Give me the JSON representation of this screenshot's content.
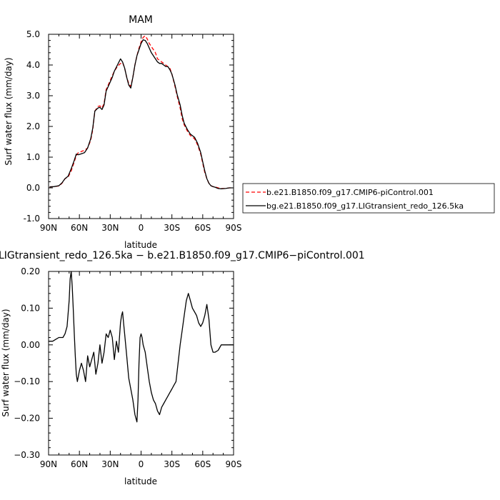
{
  "chart_data": [
    {
      "type": "line",
      "title": "MAM",
      "xlabel": "latitude",
      "ylabel": "Surf water flux (mm/day)",
      "x_tick_labels": [
        "90N",
        "60N",
        "30N",
        "0",
        "30S",
        "60S",
        "90S"
      ],
      "x_tick_values": [
        90,
        60,
        30,
        0,
        -30,
        -60,
        -90
      ],
      "xlim": [
        90,
        -90
      ],
      "y_tick_labels": [
        "-1.0",
        "0.0",
        "1.0",
        "2.0",
        "3.0",
        "4.0",
        "5.0"
      ],
      "y_tick_values": [
        -1,
        0,
        1,
        2,
        3,
        4,
        5
      ],
      "ylim": [
        -1,
        5
      ],
      "legend": "right, outside plot",
      "series": [
        {
          "name": "b.e21.B1850.f09_g17.CMIP6-piControl.001",
          "color": "#ff0000",
          "style": "dashed",
          "x": [
            89,
            85,
            80,
            77,
            74,
            71,
            68,
            65,
            63,
            61,
            59,
            57,
            55,
            52,
            49,
            47,
            45,
            42,
            40,
            38,
            36,
            34,
            32,
            30,
            28,
            26,
            23,
            20,
            18,
            16,
            14,
            12,
            10,
            8,
            6,
            4,
            2,
            0,
            -2,
            -4,
            -6,
            -8,
            -10,
            -12,
            -14,
            -16,
            -18,
            -20,
            -22,
            -24,
            -26,
            -28,
            -30,
            -33,
            -35,
            -38,
            -40,
            -42,
            -45,
            -48,
            -52,
            -55,
            -58,
            -60,
            -62,
            -64,
            -66,
            -68,
            -70,
            -72,
            -75,
            -78,
            -82,
            -86,
            -89
          ],
          "y": [
            0.03,
            0.04,
            0.06,
            0.15,
            0.3,
            0.35,
            0.55,
            0.85,
            1.05,
            1.15,
            1.17,
            1.2,
            1.22,
            1.3,
            1.55,
            1.9,
            2.5,
            2.65,
            2.67,
            2.6,
            2.75,
            3.2,
            3.35,
            3.5,
            3.65,
            3.8,
            3.95,
            4.05,
            4.08,
            3.9,
            3.6,
            3.4,
            3.3,
            3.6,
            4.0,
            4.3,
            4.55,
            4.75,
            4.9,
            4.95,
            4.85,
            4.7,
            4.6,
            4.5,
            4.4,
            4.2,
            4.15,
            4.1,
            4.05,
            4.0,
            3.95,
            3.9,
            3.7,
            3.3,
            3.0,
            2.6,
            2.25,
            2.05,
            1.85,
            1.7,
            1.6,
            1.4,
            1.1,
            0.8,
            0.5,
            0.3,
            0.15,
            0.07,
            0.04,
            0.03,
            0.0,
            -0.02,
            -0.02,
            0.0,
            0.0
          ]
        },
        {
          "name": "bg.e21.B1850.f09_g17.LIGtransient_redo_126.5ka",
          "color": "#000000",
          "style": "solid",
          "x": [
            89,
            85,
            80,
            77,
            74,
            71,
            68,
            65,
            63,
            61,
            59,
            57,
            55,
            52,
            49,
            47,
            45,
            42,
            40,
            38,
            36,
            34,
            32,
            30,
            28,
            26,
            23,
            20,
            18,
            16,
            14,
            12,
            10,
            8,
            6,
            4,
            2,
            0,
            -2,
            -4,
            -6,
            -8,
            -10,
            -12,
            -14,
            -16,
            -18,
            -20,
            -22,
            -24,
            -26,
            -28,
            -30,
            -33,
            -35,
            -38,
            -40,
            -42,
            -45,
            -48,
            -52,
            -55,
            -58,
            -60,
            -62,
            -64,
            -66,
            -68,
            -70,
            -72,
            -75,
            -78,
            -82,
            -86,
            -89
          ],
          "y": [
            0.03,
            0.04,
            0.07,
            0.16,
            0.3,
            0.38,
            0.62,
            0.9,
            1.1,
            1.08,
            1.1,
            1.12,
            1.15,
            1.3,
            1.6,
            1.95,
            2.5,
            2.6,
            2.62,
            2.55,
            2.7,
            3.15,
            3.3,
            3.45,
            3.6,
            3.8,
            4.0,
            4.2,
            4.1,
            3.9,
            3.6,
            3.35,
            3.25,
            3.6,
            4.0,
            4.3,
            4.5,
            4.7,
            4.82,
            4.8,
            4.7,
            4.55,
            4.4,
            4.3,
            4.2,
            4.1,
            4.05,
            4.05,
            4.0,
            3.95,
            3.95,
            3.85,
            3.7,
            3.35,
            3.05,
            2.7,
            2.35,
            2.1,
            1.9,
            1.75,
            1.65,
            1.45,
            1.15,
            0.85,
            0.55,
            0.3,
            0.15,
            0.07,
            0.04,
            0.02,
            -0.02,
            -0.03,
            -0.02,
            0.0,
            0.0
          ]
        }
      ]
    },
    {
      "type": "line",
      "title": "LIGtransient_redo_126.5ka − b.e21.B1850.f09_g17.CMIP6−piControl.001",
      "xlabel": "latitude",
      "ylabel": "Surf water flux (mm/day)",
      "x_tick_labels": [
        "90N",
        "60N",
        "30N",
        "0",
        "30S",
        "60S",
        "90S"
      ],
      "x_tick_values": [
        90,
        60,
        30,
        0,
        -30,
        -60,
        -90
      ],
      "xlim": [
        90,
        -90
      ],
      "y_tick_labels": [
        "−0.30",
        "−0.20",
        "−0.10",
        "0.00",
        "0.10",
        "0.20"
      ],
      "y_tick_values": [
        -0.3,
        -0.2,
        -0.1,
        0.0,
        0.1,
        0.2
      ],
      "ylim": [
        -0.3,
        0.2
      ],
      "series": [
        {
          "color": "#000000",
          "style": "solid",
          "x": [
            90,
            86,
            83,
            80,
            78,
            76,
            74,
            72,
            70,
            69,
            68,
            67,
            66,
            65,
            64,
            63,
            62,
            60,
            58,
            56,
            54,
            52,
            50,
            48,
            46,
            44,
            42,
            40,
            38,
            36,
            34,
            32,
            30,
            28,
            26,
            24,
            22,
            20,
            19,
            18,
            17,
            16,
            14,
            12,
            10,
            8,
            6,
            4,
            3,
            2,
            1,
            0,
            -1,
            -2,
            -4,
            -6,
            -8,
            -10,
            -12,
            -14,
            -16,
            -18,
            -20,
            -22,
            -24,
            -26,
            -28,
            -30,
            -32,
            -34,
            -36,
            -38,
            -40,
            -42,
            -44,
            -46,
            -48,
            -50,
            -52,
            -54,
            -56,
            -58,
            -60,
            -62,
            -64,
            -66,
            -68,
            -70,
            -72,
            -75,
            -78,
            -82,
            -86,
            -90
          ],
          "y": [
            0.01,
            0.01,
            0.015,
            0.02,
            0.02,
            0.02,
            0.03,
            0.05,
            0.12,
            0.18,
            0.2,
            0.16,
            0.1,
            0.03,
            -0.03,
            -0.08,
            -0.1,
            -0.07,
            -0.05,
            -0.07,
            -0.1,
            -0.03,
            -0.06,
            -0.04,
            -0.02,
            -0.08,
            -0.05,
            0.0,
            -0.05,
            -0.02,
            0.03,
            0.02,
            0.04,
            0.02,
            -0.04,
            0.01,
            -0.02,
            0.06,
            0.08,
            0.09,
            0.06,
            0.03,
            -0.03,
            -0.09,
            -0.12,
            -0.15,
            -0.19,
            -0.21,
            -0.15,
            -0.05,
            0.02,
            0.03,
            0.02,
            0.0,
            -0.02,
            -0.06,
            -0.1,
            -0.13,
            -0.15,
            -0.16,
            -0.18,
            -0.19,
            -0.17,
            -0.16,
            -0.15,
            -0.14,
            -0.13,
            -0.12,
            -0.11,
            -0.1,
            -0.05,
            0.0,
            0.04,
            0.08,
            0.12,
            0.14,
            0.12,
            0.1,
            0.09,
            0.08,
            0.06,
            0.05,
            0.06,
            0.08,
            0.11,
            0.07,
            0.0,
            -0.02,
            -0.02,
            -0.015,
            0.0,
            0.0,
            0.0,
            0.0
          ]
        }
      ]
    }
  ]
}
